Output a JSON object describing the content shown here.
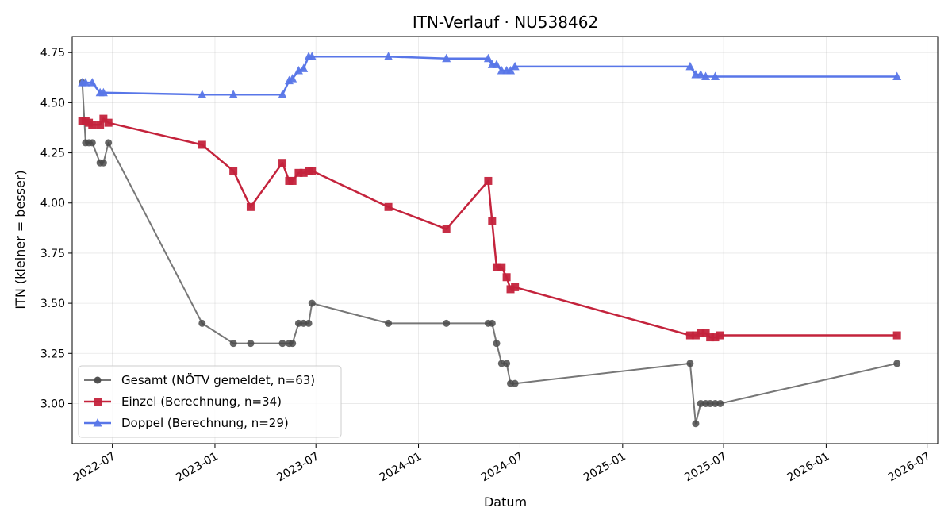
{
  "chart_data": {
    "type": "line",
    "title": "ITN-Verlauf · NU538462",
    "xlabel": "Datum",
    "ylabel": "ITN  (kleiner = besser)",
    "x_axis": "date",
    "xlim": [
      "2022-04-20",
      "2026-07-20"
    ],
    "ylim": [
      2.8,
      4.83
    ],
    "x_ticks": [
      "2022-07-01",
      "2023-01-01",
      "2023-07-01",
      "2024-01-01",
      "2024-07-01",
      "2025-01-01",
      "2025-07-01",
      "2026-01-01",
      "2026-07-01"
    ],
    "x_tick_labels": [
      "2022-07",
      "2023-01",
      "2023-07",
      "2024-01",
      "2024-07",
      "2025-01",
      "2025-07",
      "2026-01",
      "2026-07"
    ],
    "y_ticks": [
      3.0,
      3.25,
      3.5,
      3.75,
      4.0,
      4.25,
      4.5,
      4.75
    ],
    "y_tick_labels": [
      "3.00",
      "3.25",
      "3.50",
      "3.75",
      "4.00",
      "4.25",
      "4.50",
      "4.75"
    ],
    "grid": true,
    "legend_position": "lower-left",
    "series": [
      {
        "name": "Gesamt (NÖTV gemeldet, n=63)",
        "color": "#4a4a4a",
        "marker": "circle",
        "x": [
          "2022-05-08",
          "2022-05-14",
          "2022-05-20",
          "2022-05-26",
          "2022-06-09",
          "2022-06-15",
          "2022-06-24",
          "2022-12-09",
          "2023-02-03",
          "2023-03-06",
          "2023-05-02",
          "2023-05-14",
          "2023-05-20",
          "2023-05-31",
          "2023-06-09",
          "2023-06-18",
          "2023-06-24",
          "2023-11-08",
          "2024-02-20",
          "2024-05-05",
          "2024-05-12",
          "2024-05-20",
          "2024-05-29",
          "2024-06-07",
          "2024-06-14",
          "2024-06-22",
          "2025-05-02",
          "2025-05-12",
          "2025-05-21",
          "2025-05-30",
          "2025-06-07",
          "2025-06-16",
          "2025-06-25",
          "2026-05-08"
        ],
        "values": [
          4.6,
          4.3,
          4.3,
          4.3,
          4.2,
          4.2,
          4.3,
          3.4,
          3.3,
          3.3,
          3.3,
          3.3,
          3.3,
          3.4,
          3.4,
          3.4,
          3.5,
          3.4,
          3.4,
          3.4,
          3.4,
          3.3,
          3.2,
          3.2,
          3.1,
          3.1,
          3.2,
          2.9,
          3.0,
          3.0,
          3.0,
          3.0,
          3.0,
          3.2
        ]
      },
      {
        "name": "Einzel (Berechnung, n=34)",
        "color": "#c4233c",
        "marker": "square",
        "x": [
          "2022-05-08",
          "2022-05-14",
          "2022-05-20",
          "2022-05-26",
          "2022-06-09",
          "2022-06-15",
          "2022-06-24",
          "2022-12-09",
          "2023-02-03",
          "2023-03-06",
          "2023-05-02",
          "2023-05-14",
          "2023-05-20",
          "2023-05-31",
          "2023-06-09",
          "2023-06-18",
          "2023-06-24",
          "2023-11-08",
          "2024-02-20",
          "2024-05-05",
          "2024-05-12",
          "2024-05-20",
          "2024-05-29",
          "2024-06-07",
          "2024-06-14",
          "2024-06-22",
          "2025-05-02",
          "2025-05-12",
          "2025-05-21",
          "2025-05-30",
          "2025-06-07",
          "2025-06-16",
          "2025-06-25",
          "2026-05-08"
        ],
        "values": [
          4.41,
          4.41,
          4.4,
          4.39,
          4.39,
          4.42,
          4.4,
          4.29,
          4.16,
          3.98,
          4.2,
          4.11,
          4.11,
          4.15,
          4.15,
          4.16,
          4.16,
          3.98,
          3.87,
          4.11,
          3.91,
          3.68,
          3.68,
          3.63,
          3.57,
          3.58,
          3.34,
          3.34,
          3.35,
          3.35,
          3.33,
          3.33,
          3.34,
          3.34
        ]
      },
      {
        "name": "Doppel (Berechnung, n=29)",
        "color": "#5876e8",
        "marker": "triangle",
        "x": [
          "2022-05-08",
          "2022-05-14",
          "2022-05-26",
          "2022-06-09",
          "2022-06-15",
          "2022-12-09",
          "2023-02-03",
          "2023-05-02",
          "2023-05-14",
          "2023-05-20",
          "2023-05-31",
          "2023-06-09",
          "2023-06-18",
          "2023-06-24",
          "2023-11-08",
          "2024-02-20",
          "2024-05-05",
          "2024-05-12",
          "2024-05-20",
          "2024-05-29",
          "2024-06-07",
          "2024-06-14",
          "2024-06-22",
          "2025-05-02",
          "2025-05-12",
          "2025-05-21",
          "2025-05-30",
          "2025-06-16",
          "2026-05-08"
        ],
        "values": [
          4.6,
          4.6,
          4.6,
          4.55,
          4.55,
          4.54,
          4.54,
          4.54,
          4.61,
          4.62,
          4.66,
          4.67,
          4.73,
          4.73,
          4.73,
          4.72,
          4.72,
          4.69,
          4.69,
          4.66,
          4.66,
          4.66,
          4.68,
          4.68,
          4.64,
          4.64,
          4.63,
          4.63,
          4.63
        ]
      }
    ]
  }
}
